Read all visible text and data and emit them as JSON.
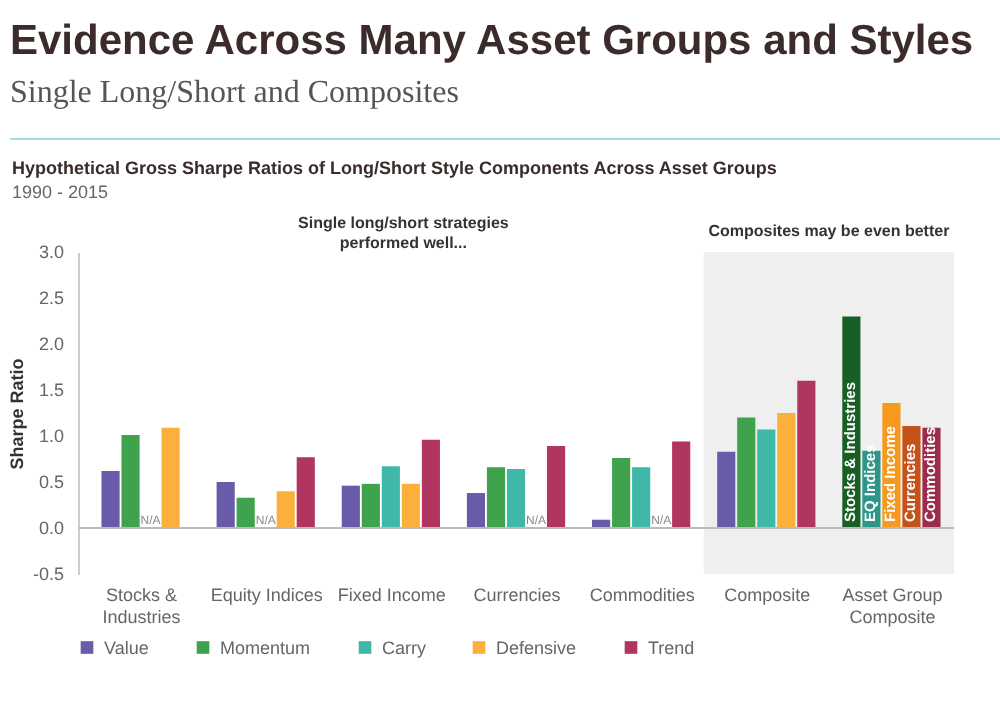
{
  "chart_data": {
    "type": "bar",
    "title": "Evidence Across Many Asset Groups and Styles",
    "subtitle": "Single Long/Short and Composites",
    "annotations": [
      "Hypothetical Gross Sharpe Ratios of Long/Short Style Components Across Asset Groups",
      "1990 - 2015",
      "Single long/short strategies performed well..."
    ],
    "ylabel": "Sharpe Ratio",
    "categories": [
      "Stocks & Industries",
      "Equity Indices",
      "Fixed Income",
      "Currencies",
      "Commodities",
      "Composite",
      "Asset Group Composite"
    ],
    "series": [
      {
        "name": "Value",
        "color": "#6a5aaa",
        "values": [
          0.62,
          0.5,
          0.46,
          0.38,
          0.09,
          0.83,
          null
        ]
      },
      {
        "name": "Momentum",
        "color": "#3fa34d",
        "values": [
          1.01,
          0.33,
          0.48,
          0.66,
          0.76,
          1.2,
          null
        ],
        "value_labels": [
          null,
          null,
          null,
          null,
          null,
          null,
          null
        ]
      },
      {
        "name": "Carry",
        "color": "#3fb8a8",
        "values": [
          null,
          null,
          0.67,
          0.64,
          0.66,
          1.07,
          null
        ],
        "value_labels": [
          "N/A",
          "N/A",
          null,
          null,
          null,
          null,
          null
        ]
      },
      {
        "name": "Defensive",
        "color": "#fbb03b",
        "values": [
          1.09,
          0.4,
          0.48,
          null,
          null,
          1.25,
          null
        ],
        "value_labels": [
          null,
          null,
          null,
          "N/A",
          "N/A",
          null,
          null
        ]
      },
      {
        "name": "Trend",
        "color": "#b03560",
        "values": [
          null,
          0.77,
          0.96,
          0.89,
          0.94,
          1.6,
          null
        ]
      },
      {
        "name": "Stocks & Industries",
        "color": "#175f24",
        "values": [
          null,
          null,
          null,
          null,
          null,
          null,
          2.3
        ]
      },
      {
        "name": "EQ Indices",
        "color": "#2e9688",
        "values": [
          null,
          null,
          null,
          null,
          null,
          null,
          0.84
        ]
      },
      {
        "name": "Fixed Income",
        "color": "#f59a1e",
        "values": [
          null,
          null,
          null,
          null,
          null,
          null,
          1.36
        ]
      },
      {
        "name": "Currencies",
        "color": "#c4521a",
        "values": [
          null,
          null,
          null,
          null,
          null,
          null,
          1.11
        ]
      },
      {
        "name": "Commodities",
        "color": "#9a2d4e",
        "values": [
          null,
          null,
          null,
          null,
          null,
          null,
          1.09
        ]
      }
    ],
    "ylim": [
      -0.5,
      3.0
    ],
    "yticks": [
      {
        "value": -0.5,
        "label": "-0.5"
      },
      {
        "value": 0,
        "label": "0.0"
      },
      {
        "value": 0.5,
        "label": "0.5"
      },
      {
        "value": 1,
        "label": "1.0"
      },
      {
        "value": 1.5,
        "label": "1.5"
      },
      {
        "value": 2,
        "label": "2.0"
      },
      {
        "value": 2.5,
        "label": "2.5"
      },
      {
        "value": 3,
        "label": "3.0"
      }
    ],
    "bands": [
      {
        "axis": "x",
        "from": "Composite",
        "to": "Asset Group Composite",
        "label": "Composites may be even better",
        "color": "#efefef"
      }
    ],
    "ref_lines": [
      {
        "axis": "y",
        "value": 0,
        "color": "#bbbbbb"
      }
    ],
    "grid": false,
    "legend": "bottom"
  }
}
